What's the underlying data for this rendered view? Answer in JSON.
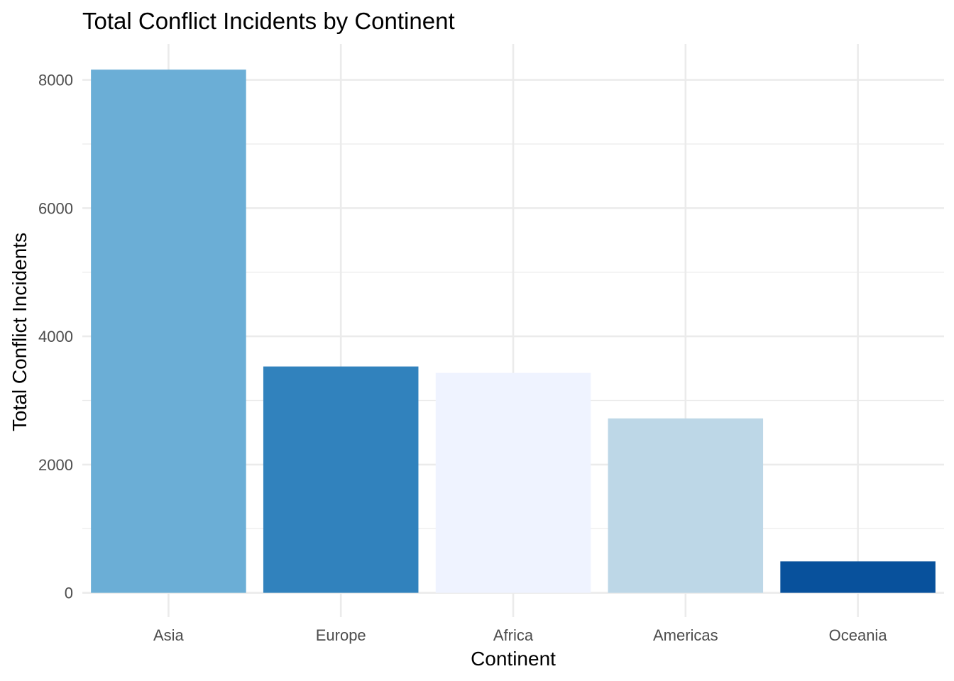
{
  "chart_data": {
    "type": "bar",
    "title": "Total Conflict Incidents by Continent",
    "xlabel": "Continent",
    "ylabel": "Total Conflict Incidents",
    "categories": [
      "Asia",
      "Europe",
      "Africa",
      "Americas",
      "Oceania"
    ],
    "values": [
      8160,
      3530,
      3430,
      2720,
      490
    ],
    "colors": [
      "#6baed6",
      "#3182bd",
      "#eff3ff",
      "#bdd7e7",
      "#08519c"
    ],
    "ylim": [
      -380,
      8560
    ],
    "yticks": [
      0,
      2000,
      4000,
      6000,
      8000
    ],
    "yminor": [
      1000,
      3000,
      5000,
      7000
    ],
    "grid": true,
    "legend": "none"
  }
}
